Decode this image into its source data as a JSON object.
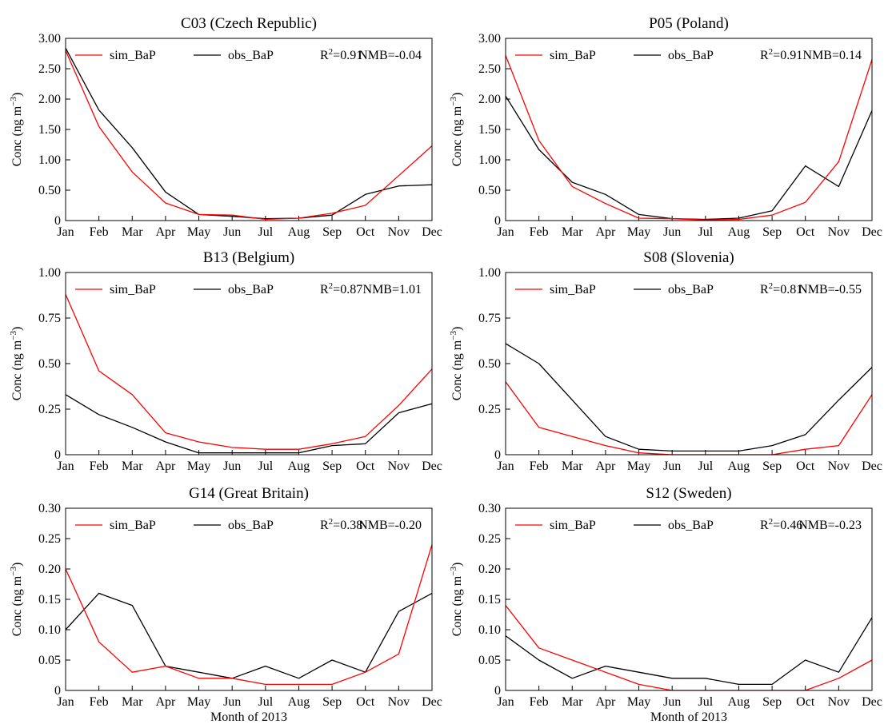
{
  "chart_data": [
    {
      "type": "line",
      "title": "C03 (Czech Republic)",
      "ylabel": "Conc (ng m−3)",
      "xlabel": "",
      "categories": [
        "Jan",
        "Feb",
        "Mar",
        "Apr",
        "May",
        "Jun",
        "Jul",
        "Aug",
        "Sep",
        "Oct",
        "Nov",
        "Dec"
      ],
      "ylim": [
        0,
        3
      ],
      "yticks": [
        "0",
        "0.50",
        "1.00",
        "1.50",
        "2.00",
        "2.50",
        "3.00"
      ],
      "series": [
        {
          "name": "sim_BaP",
          "color": "#ff0000",
          "values": [
            2.8,
            1.55,
            0.8,
            0.29,
            0.1,
            0.09,
            0.02,
            0.04,
            0.12,
            0.25,
            0.74,
            1.23
          ]
        },
        {
          "name": "obs_BaP",
          "color": "#000000",
          "values": [
            2.84,
            1.82,
            1.2,
            0.47,
            0.1,
            0.07,
            0.03,
            0.04,
            0.09,
            0.43,
            0.57,
            0.59
          ]
        }
      ],
      "stats": {
        "r2": "=0.91",
        "nmb": "NMB=-0.04"
      }
    },
    {
      "type": "line",
      "title": "P05 (Poland)",
      "ylabel": "Conc (ng m−3)",
      "xlabel": "",
      "categories": [
        "Jan",
        "Feb",
        "Mar",
        "Apr",
        "May",
        "Jun",
        "Jul",
        "Aug",
        "Sep",
        "Oct",
        "Nov",
        "Dec"
      ],
      "ylim": [
        0,
        3
      ],
      "yticks": [
        "0",
        "0.50",
        "1.00",
        "1.50",
        "2.00",
        "2.50",
        "3.00"
      ],
      "series": [
        {
          "name": "sim_BaP",
          "color": "#ff0000",
          "values": [
            2.72,
            1.32,
            0.56,
            0.28,
            0.04,
            0.03,
            0.01,
            0.02,
            0.09,
            0.3,
            0.97,
            2.65
          ]
        },
        {
          "name": "obs_BaP",
          "color": "#000000",
          "values": [
            2.05,
            1.17,
            0.63,
            0.43,
            0.1,
            0.03,
            0.02,
            0.04,
            0.16,
            0.9,
            0.56,
            1.81
          ]
        }
      ],
      "stats": {
        "r2": "=0.91",
        "nmb": "NMB=0.14"
      }
    },
    {
      "type": "line",
      "title": "B13 (Belgium)",
      "ylabel": "Conc (ng m−3)",
      "xlabel": "",
      "categories": [
        "Jan",
        "Feb",
        "Mar",
        "Apr",
        "May",
        "Jun",
        "Jul",
        "Aug",
        "Sep",
        "Oct",
        "Nov",
        "Dec"
      ],
      "ylim": [
        0,
        1
      ],
      "yticks": [
        "0",
        "0.25",
        "0.50",
        "0.75",
        "1.00"
      ],
      "series": [
        {
          "name": "sim_BaP",
          "color": "#ff0000",
          "values": [
            0.88,
            0.46,
            0.33,
            0.12,
            0.07,
            0.04,
            0.03,
            0.03,
            0.06,
            0.1,
            0.27,
            0.47
          ]
        },
        {
          "name": "obs_BaP",
          "color": "#000000",
          "values": [
            0.33,
            0.22,
            0.15,
            0.07,
            0.01,
            0.01,
            0.01,
            0.01,
            0.05,
            0.06,
            0.23,
            0.28
          ]
        }
      ],
      "stats": {
        "r2": "=0.87",
        "nmb": "NMB=1.01"
      }
    },
    {
      "type": "line",
      "title": "S08 (Slovenia)",
      "ylabel": "Conc (ng m−3)",
      "xlabel": "",
      "categories": [
        "Jan",
        "Feb",
        "Mar",
        "Apr",
        "May",
        "Jun",
        "Jul",
        "Aug",
        "Sep",
        "Oct",
        "Nov",
        "Dec"
      ],
      "ylim": [
        0,
        1
      ],
      "yticks": [
        "0",
        "0.25",
        "0.50",
        "0.75",
        "1.00"
      ],
      "series": [
        {
          "name": "sim_BaP",
          "color": "#ff0000",
          "values": [
            0.4,
            0.15,
            0.1,
            0.05,
            0.01,
            0.0,
            0.0,
            0.0,
            0.0,
            0.03,
            0.05,
            0.33
          ]
        },
        {
          "name": "obs_BaP",
          "color": "#000000",
          "values": [
            0.61,
            0.5,
            0.3,
            0.1,
            0.03,
            0.02,
            0.02,
            0.02,
            0.05,
            0.11,
            0.3,
            0.48
          ]
        }
      ],
      "stats": {
        "r2": "=0.81",
        "nmb": "NMB=-0.55"
      }
    },
    {
      "type": "line",
      "title": "G14 (Great Britain)",
      "ylabel": "Conc (ng m−3)",
      "xlabel": "Month of 2013",
      "categories": [
        "Jan",
        "Feb",
        "Mar",
        "Apr",
        "May",
        "Jun",
        "Jul",
        "Aug",
        "Sep",
        "Oct",
        "Nov",
        "Dec"
      ],
      "ylim": [
        0,
        0.3
      ],
      "yticks": [
        "0",
        "0.05",
        "0.10",
        "0.15",
        "0.20",
        "0.25",
        "0.30"
      ],
      "series": [
        {
          "name": "sim_BaP",
          "color": "#ff0000",
          "values": [
            0.2,
            0.08,
            0.03,
            0.04,
            0.02,
            0.02,
            0.01,
            0.01,
            0.01,
            0.03,
            0.06,
            0.24
          ]
        },
        {
          "name": "obs_BaP",
          "color": "#000000",
          "values": [
            0.1,
            0.16,
            0.14,
            0.04,
            0.03,
            0.02,
            0.04,
            0.02,
            0.05,
            0.03,
            0.13,
            0.16
          ]
        }
      ],
      "stats": {
        "r2": "=0.38",
        "nmb": "NMB=-0.20"
      }
    },
    {
      "type": "line",
      "title": "S12 (Sweden)",
      "ylabel": "Conc (ng m−3)",
      "xlabel": "Month of 2013",
      "categories": [
        "Jan",
        "Feb",
        "Mar",
        "Apr",
        "May",
        "Jun",
        "Jul",
        "Aug",
        "Sep",
        "Oct",
        "Nov",
        "Dec"
      ],
      "ylim": [
        0,
        0.3
      ],
      "yticks": [
        "0",
        "0.05",
        "0.10",
        "0.15",
        "0.20",
        "0.25",
        "0.30"
      ],
      "series": [
        {
          "name": "sim_BaP",
          "color": "#ff0000",
          "values": [
            0.14,
            0.07,
            0.05,
            0.03,
            0.01,
            0.0,
            0.0,
            0.0,
            0.0,
            0.0,
            0.02,
            0.05
          ]
        },
        {
          "name": "obs_BaP",
          "color": "#000000",
          "values": [
            0.09,
            0.05,
            0.02,
            0.04,
            0.03,
            0.02,
            0.02,
            0.01,
            0.01,
            0.05,
            0.03,
            0.12
          ]
        }
      ],
      "stats": {
        "r2": "=0.46",
        "nmb": "NMB=-0.23"
      }
    }
  ]
}
